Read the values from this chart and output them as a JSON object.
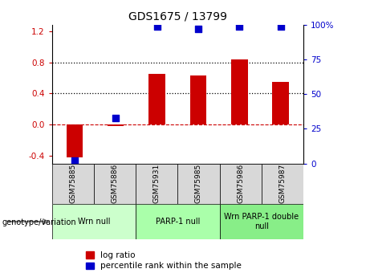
{
  "title": "GDS1675 / 13799",
  "samples": [
    "GSM75885",
    "GSM75886",
    "GSM75931",
    "GSM75985",
    "GSM75986",
    "GSM75987"
  ],
  "log_ratio": [
    -0.42,
    -0.02,
    0.65,
    0.63,
    0.84,
    0.55
  ],
  "percentile_rank": [
    2,
    33,
    99,
    97,
    99,
    99
  ],
  "groups": [
    {
      "label": "Wrn null",
      "start": 0,
      "end": 2,
      "color": "#ccffcc"
    },
    {
      "label": "PARP-1 null",
      "start": 2,
      "end": 4,
      "color": "#aaffaa"
    },
    {
      "label": "Wrn PARP-1 double\nnull",
      "start": 4,
      "end": 6,
      "color": "#88ee88"
    }
  ],
  "bar_color": "#cc0000",
  "dot_color": "#0000cc",
  "ylim_left": [
    -0.5,
    1.28
  ],
  "ylim_right": [
    0,
    100
  ],
  "yticks_left": [
    -0.4,
    0.0,
    0.4,
    0.8,
    1.2
  ],
  "yticks_right": [
    0,
    25,
    50,
    75,
    100
  ],
  "ytick_labels_right": [
    "0",
    "25",
    "50",
    "75",
    "100%"
  ],
  "hlines": [
    0.4,
    0.8
  ],
  "zero_line_y": 0.0,
  "bar_color_name": "#cc0000",
  "dot_color_name": "#0000cc",
  "legend_labels": [
    "log ratio",
    "percentile rank within the sample"
  ],
  "genotype_label": "genotype/variation"
}
